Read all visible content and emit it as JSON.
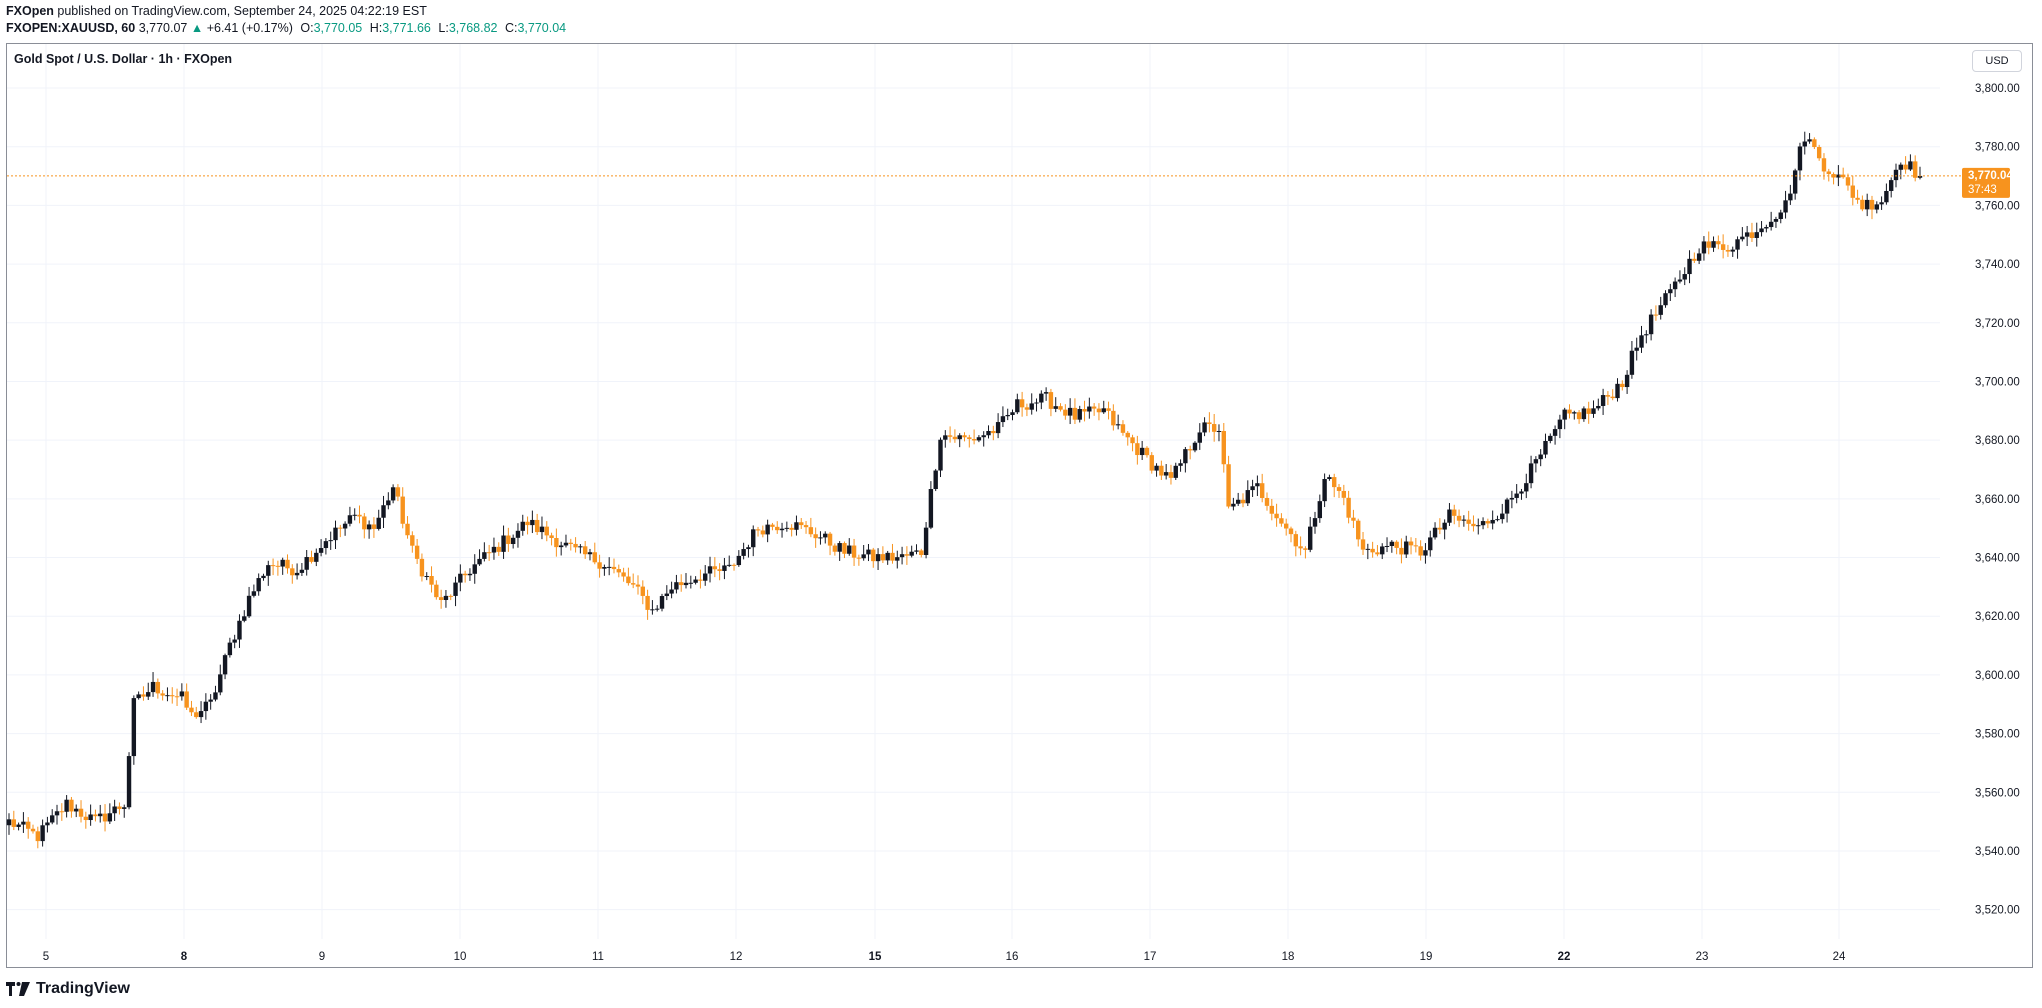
{
  "header": {
    "publisher": "FXOpen",
    "published_text": "published on TradingView.com, September 24, 2025 04:22:19 EST",
    "symbol": "FXOPEN:XAUUSD, 60",
    "last": "3,770.07",
    "change_arrow": "▲",
    "change": "+6.41 (+0.17%)",
    "o_label": "O:",
    "o": "3,770.05",
    "h_label": "H:",
    "h": "3,771.66",
    "l_label": "L:",
    "l": "3,768.82",
    "c_label": "C:",
    "c": "3,770.04"
  },
  "chart_title": "Gold Spot / U.S. Dollar · 1h · FXOpen",
  "currency": "USD",
  "price_label": "3,770.04",
  "countdown": "37:43",
  "footer": {
    "brand": "TradingView"
  },
  "colors": {
    "up": "#131722",
    "down": "#f7931e",
    "grid": "#f0f3fa",
    "last_line": "#f7931e",
    "header_up": "#089981"
  },
  "icons": [
    "tradingview-logo-icon",
    "up-triangle-icon"
  ],
  "chart_data": {
    "type": "candlestick",
    "title": "Gold Spot / U.S. Dollar · 1h · FXOpen",
    "ylim": [
      3510,
      3815
    ],
    "y_ticks": [
      3520,
      3540,
      3560,
      3580,
      3600,
      3620,
      3640,
      3660,
      3680,
      3700,
      3720,
      3740,
      3760,
      3780,
      3800
    ],
    "y_tick_labels": [
      "3,520.00",
      "3,540.00",
      "3,560.00",
      "3,580.00",
      "3,600.00",
      "3,620.00",
      "3,640.00",
      "3,660.00",
      "3,680.00",
      "3,700.00",
      "3,720.00",
      "3,740.00",
      "3,760.00",
      "3,780.00",
      "3,800.00"
    ],
    "x_ticks": [
      "5",
      "8",
      "9",
      "10",
      "11",
      "12",
      "15",
      "16",
      "17",
      "18",
      "19",
      "22",
      "23",
      "24"
    ],
    "x_ticks_bold": [
      "8",
      "15",
      "22"
    ],
    "last_price": 3770.04,
    "grid": true,
    "anchors": [
      [
        0,
        3550
      ],
      [
        6,
        3545
      ],
      [
        12,
        3556
      ],
      [
        18,
        3550
      ],
      [
        24,
        3556
      ],
      [
        26,
        3590
      ],
      [
        30,
        3596
      ],
      [
        36,
        3592
      ],
      [
        38,
        3586
      ],
      [
        42,
        3590
      ],
      [
        46,
        3610
      ],
      [
        50,
        3626
      ],
      [
        54,
        3638
      ],
      [
        60,
        3636
      ],
      [
        66,
        3646
      ],
      [
        72,
        3654
      ],
      [
        76,
        3650
      ],
      [
        80,
        3664
      ],
      [
        84,
        3642
      ],
      [
        90,
        3624
      ],
      [
        96,
        3636
      ],
      [
        102,
        3644
      ],
      [
        108,
        3652
      ],
      [
        112,
        3648
      ],
      [
        118,
        3642
      ],
      [
        124,
        3638
      ],
      [
        130,
        3630
      ],
      [
        134,
        3622
      ],
      [
        138,
        3630
      ],
      [
        144,
        3634
      ],
      [
        150,
        3636
      ],
      [
        156,
        3650
      ],
      [
        162,
        3652
      ],
      [
        168,
        3648
      ],
      [
        174,
        3642
      ],
      [
        180,
        3640
      ],
      [
        186,
        3640
      ],
      [
        190,
        3642
      ],
      [
        194,
        3682
      ],
      [
        200,
        3680
      ],
      [
        206,
        3684
      ],
      [
        210,
        3692
      ],
      [
        216,
        3694
      ],
      [
        222,
        3688
      ],
      [
        228,
        3690
      ],
      [
        232,
        3682
      ],
      [
        238,
        3672
      ],
      [
        242,
        3666
      ],
      [
        248,
        3684
      ],
      [
        252,
        3684
      ],
      [
        254,
        3656
      ],
      [
        260,
        3664
      ],
      [
        266,
        3650
      ],
      [
        270,
        3642
      ],
      [
        274,
        3668
      ],
      [
        278,
        3660
      ],
      [
        282,
        3642
      ],
      [
        288,
        3644
      ],
      [
        294,
        3642
      ],
      [
        300,
        3654
      ],
      [
        306,
        3650
      ],
      [
        312,
        3658
      ],
      [
        318,
        3672
      ],
      [
        324,
        3688
      ],
      [
        330,
        3690
      ],
      [
        336,
        3700
      ],
      [
        340,
        3716
      ],
      [
        346,
        3730
      ],
      [
        352,
        3746
      ],
      [
        358,
        3746
      ],
      [
        364,
        3752
      ],
      [
        370,
        3760
      ],
      [
        374,
        3784
      ],
      [
        378,
        3774
      ],
      [
        382,
        3768
      ],
      [
        386,
        3760
      ],
      [
        390,
        3762
      ],
      [
        394,
        3776
      ],
      [
        398,
        3770
      ]
    ]
  }
}
